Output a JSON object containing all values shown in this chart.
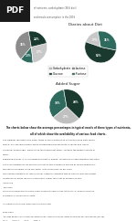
{
  "title_top": "Diaries about Diet",
  "title_bottom": "Added Sugar",
  "pie1_values": [
    36,
    13,
    27,
    24
  ],
  "pie1_labels": [
    "36%",
    "13%",
    "27%",
    "24%"
  ],
  "pie1_colors": [
    "#8c8c8c",
    "#2e6b5e",
    "#c8c8c8",
    "#1a3a30"
  ],
  "pie2_values": [
    17,
    52,
    31
  ],
  "pie2_labels": [
    "17%",
    "52%",
    "31%"
  ],
  "pie2_colors": [
    "#c8c8c8",
    "#1a3a30",
    "#2e6b5e"
  ],
  "pie3_values": [
    33,
    27,
    40
  ],
  "pie3_labels": [
    "33%",
    "27%",
    "40%"
  ],
  "pie3_colors": [
    "#2e6b5e",
    "#c0c0c0",
    "#1a3a30"
  ],
  "legend_labels": [
    "Carbohydrate",
    "Glucose",
    "Lactose",
    "Fructose"
  ],
  "legend_colors": [
    "#c8c8c8",
    "#1a3a30",
    "#8c8c8c",
    "#2e6b5e"
  ],
  "caption_line1": "The charts below show the average percentages in typical meals of three types of nutrients,",
  "caption_line2": "all of which show the availability of various food charts.",
  "body_text": "The diagram represents the major types of those distributive nutrients in food diets meals.\nStarch, Glucose and Lactose are all represented predominantly in dinner and lunchy\nbalanced, added sugar, which is the most dominant factor, contains the greatest points of\nmeals.\nRegarding sodium, it is considered the most in format, consuming for approximately two fifths\nbut a considerably lesser position (not unlike those media) is making by levels additionally,\nthe nature of sodium is the key factor is its consumers, as per each.\nConsuming saturated fat, rate a similar intake to saturated that at calcium with the largest\nconstantly by foods, which is comparably higher than that of fructose at 23%.",
  "extra_text1": "ILB source\nThe Video\nSince a discussion with the long videos show not show a video the has to 'all of which may the\navailability of various food charts'\n\nAll charts into the small media for to the pie chart\n\nBrief Video\nThis was being of such notes for being funds, share your ideas. Notes should did any look feeling (for TR):\nSS. 1        S.K.C. 1        SL.0.        Sink. 1",
  "background_color": "#ffffff",
  "pdf_bg": "#1a1a1a"
}
